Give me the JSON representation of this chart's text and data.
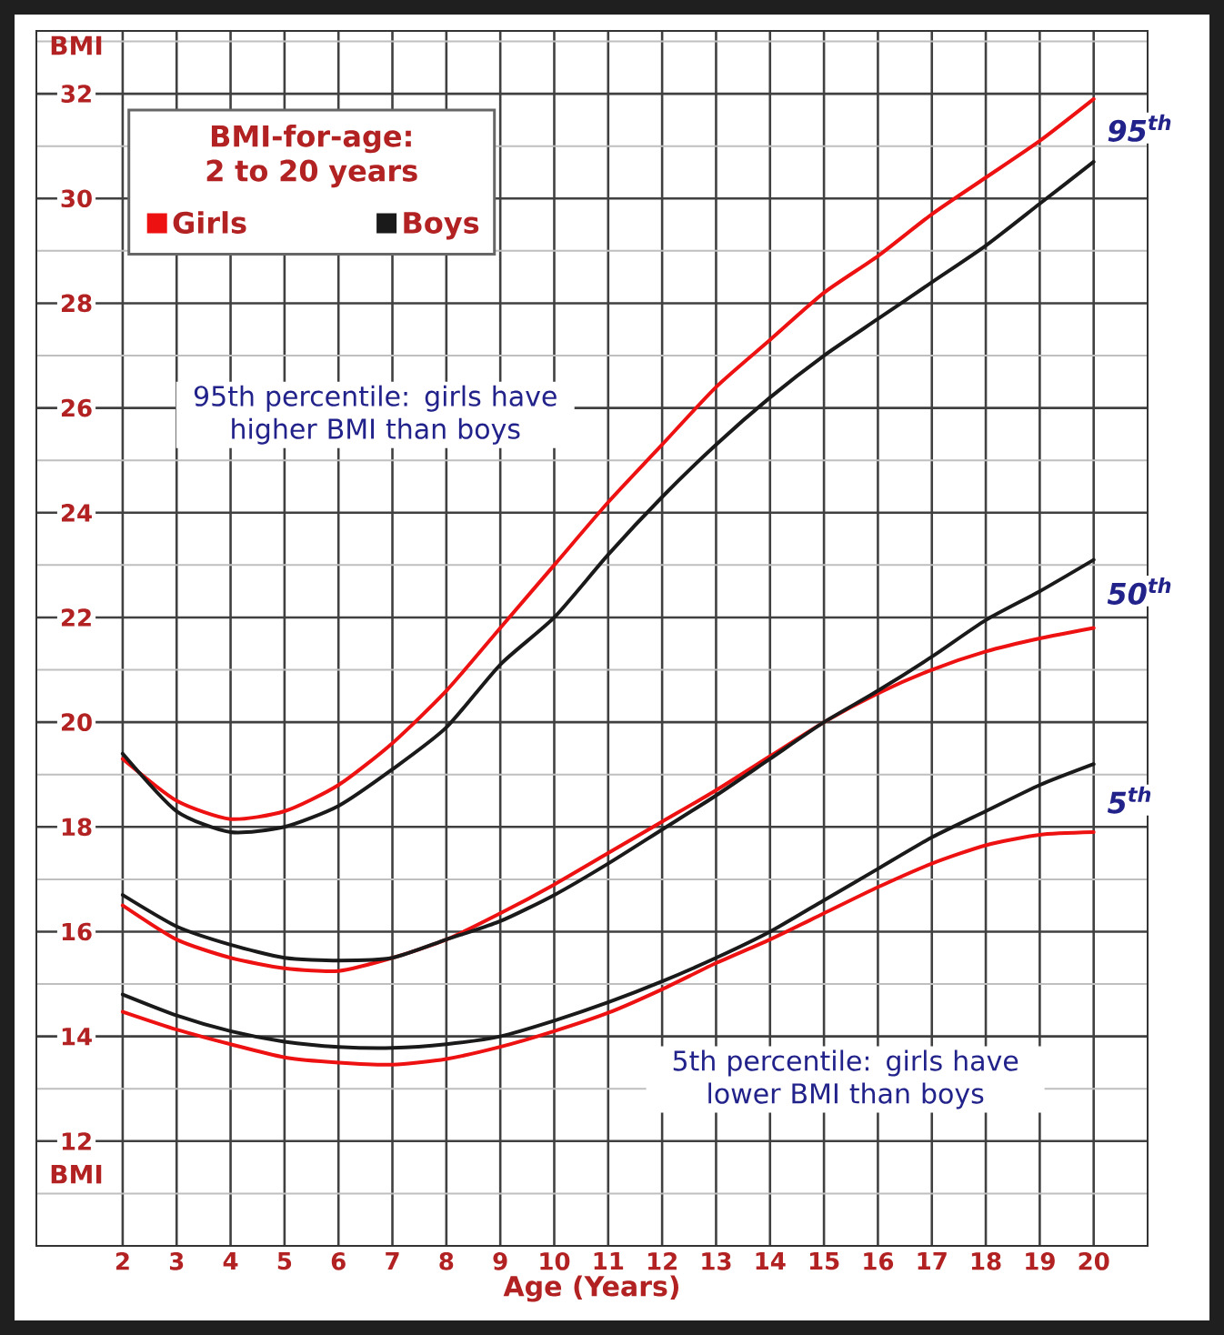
{
  "chart_data": {
    "type": "line",
    "xlabel": "Age (Years)",
    "ylabel": "BMI",
    "legend_title": "BMI-for-age: 2 to 20 years",
    "legend": "top left",
    "grid": true,
    "x": [
      2,
      3,
      4,
      5,
      6,
      7,
      8,
      9,
      10,
      11,
      12,
      13,
      14,
      15,
      16,
      17,
      18,
      19,
      20
    ],
    "xlim": [
      0.4,
      21
    ],
    "xticks": [
      2,
      3,
      4,
      5,
      6,
      7,
      8,
      9,
      10,
      11,
      12,
      13,
      14,
      15,
      16,
      17,
      18,
      19,
      20
    ],
    "ylim": [
      10,
      33.2
    ],
    "yticks": [
      12,
      14,
      16,
      18,
      20,
      22,
      24,
      26,
      28,
      30,
      32
    ],
    "series": [
      {
        "name": "Girls",
        "color": "#ee1111",
        "values": [
          19.3,
          18.5,
          18.15,
          18.3,
          18.8,
          19.6,
          20.6,
          21.8,
          23.0,
          24.2,
          25.3,
          26.4,
          27.3,
          28.2,
          28.9,
          29.7,
          30.4,
          31.1,
          31.9
        ]
      },
      {
        "name": "Boys",
        "color": "#1a1a1a",
        "values": [
          19.4,
          18.3,
          17.9,
          18.0,
          18.4,
          19.1,
          19.9,
          21.1,
          22.0,
          23.2,
          24.3,
          25.3,
          26.2,
          27.0,
          27.7,
          28.4,
          29.1,
          29.9,
          30.7
        ]
      },
      {
        "color": "#ee1111",
        "values": [
          16.5,
          15.85,
          15.5,
          15.3,
          15.25,
          15.5,
          15.85,
          16.35,
          16.9,
          17.5,
          18.1,
          18.7,
          19.35,
          20.0,
          20.55,
          21.0,
          21.35,
          21.6,
          21.8
        ]
      },
      {
        "color": "#1a1a1a",
        "values": [
          16.7,
          16.1,
          15.75,
          15.5,
          15.45,
          15.5,
          15.85,
          16.2,
          16.7,
          17.3,
          17.95,
          18.6,
          19.3,
          20.0,
          20.6,
          21.25,
          21.95,
          22.5,
          23.1
        ]
      },
      {
        "color": "#ee1111",
        "values": [
          14.47,
          14.13,
          13.85,
          13.6,
          13.5,
          13.46,
          13.57,
          13.8,
          14.1,
          14.45,
          14.9,
          15.4,
          15.85,
          16.35,
          16.85,
          17.3,
          17.65,
          17.85,
          17.9
        ]
      },
      {
        "color": "#1a1a1a",
        "values": [
          14.8,
          14.4,
          14.1,
          13.9,
          13.8,
          13.78,
          13.85,
          14.0,
          14.3,
          14.65,
          15.05,
          15.5,
          16.0,
          16.6,
          17.2,
          17.8,
          18.3,
          18.8,
          19.2
        ]
      }
    ],
    "annotations": [
      "95$^{th}$",
      "50$^{th}$",
      "5$^{th}$",
      "95th percentile: girls have higher BMI than boys",
      "5th percentile: girls have lower BMI than boys",
      "BMI"
    ]
  }
}
